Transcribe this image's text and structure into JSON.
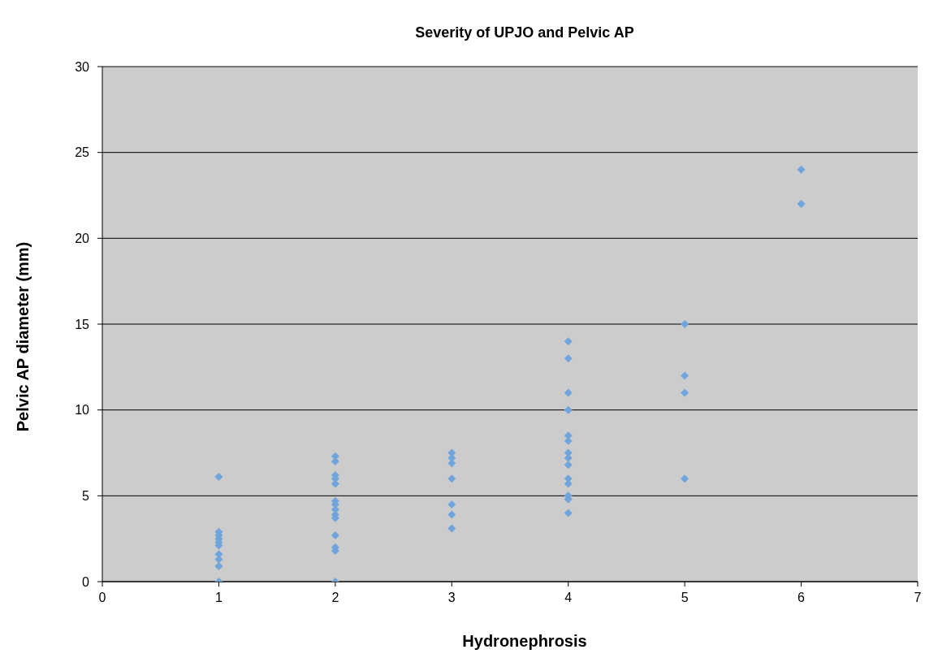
{
  "chart_data": {
    "type": "scatter",
    "title": "Severity of UPJO and Pelvic AP",
    "xlabel": "Hydronephrosis",
    "ylabel": "Pelvic  AP diameter (mm)",
    "x": [
      1,
      1,
      1,
      1,
      1,
      1,
      1,
      1,
      1,
      1,
      2,
      2,
      2,
      2,
      2,
      2,
      2,
      2,
      2,
      2,
      2,
      2,
      2,
      2,
      3,
      3,
      3,
      3,
      3,
      3,
      3,
      4,
      4,
      4,
      4,
      4,
      4,
      4,
      4,
      4,
      4,
      4,
      4,
      4,
      4,
      5,
      5,
      5,
      5,
      6,
      6
    ],
    "values": [
      6.1,
      2.9,
      2.7,
      2.5,
      2.3,
      2.1,
      1.6,
      1.3,
      0.9,
      0,
      7.3,
      7,
      6.2,
      6,
      5.7,
      4.7,
      4.5,
      4.2,
      3.9,
      3.7,
      2.7,
      2,
      1.8,
      0,
      7.5,
      7.2,
      6.9,
      6,
      4.5,
      3.9,
      3.1,
      14,
      13,
      11,
      10,
      8.5,
      8.2,
      7.5,
      7.2,
      6.8,
      6,
      5.7,
      5,
      4.8,
      4,
      15,
      12,
      11,
      6,
      24,
      22
    ],
    "color": "#6fa5dc",
    "marker": "diamond",
    "xlim": [
      0,
      7
    ],
    "xticks": [
      0,
      1,
      2,
      3,
      4,
      5,
      6,
      7
    ],
    "ylim": [
      0,
      30
    ],
    "yticks": [
      0,
      5,
      10,
      15,
      20,
      25,
      30
    ],
    "grid": "y"
  }
}
